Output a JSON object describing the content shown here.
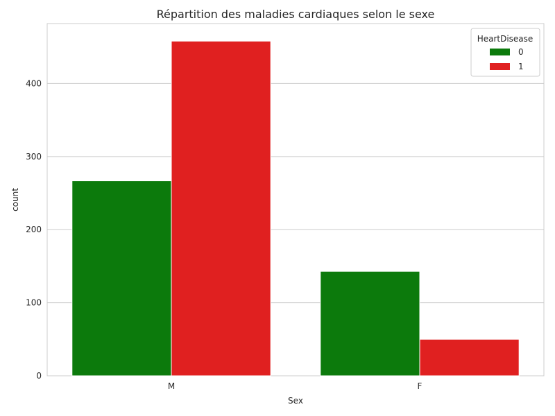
{
  "chart_data": {
    "type": "bar",
    "title": "Répartition des maladies cardiaques selon le sexe",
    "xlabel": "Sex",
    "ylabel": "count",
    "categories": [
      "M",
      "F"
    ],
    "series": [
      {
        "name": "0",
        "color": "#0c7a0c",
        "values": [
          267,
          143
        ]
      },
      {
        "name": "1",
        "color": "#e02020",
        "values": [
          458,
          50
        ]
      }
    ],
    "ylim": [
      0,
      482
    ],
    "yticks": [
      0,
      100,
      200,
      300,
      400
    ],
    "grid": "y",
    "legend": {
      "title": "HeartDisease",
      "placement": "top-right"
    }
  }
}
